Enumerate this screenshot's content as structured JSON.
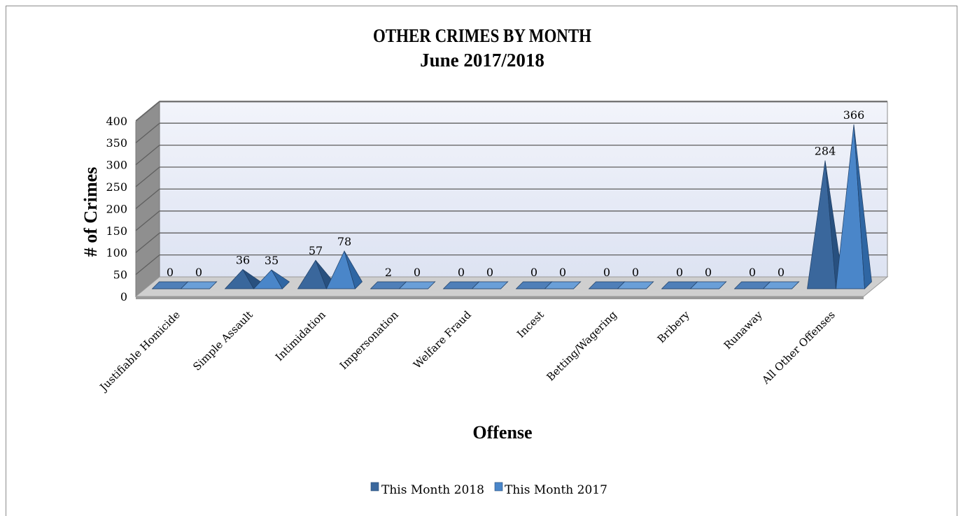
{
  "chart_data": {
    "type": "bar",
    "title": "OTHER CRIMES BY MONTH",
    "subtitle": "June 2017/2018",
    "xlabel": "Offense",
    "ylabel": "# of Crimes",
    "ylim": [
      0,
      400
    ],
    "yticks": [
      "0",
      "50",
      "100",
      "150",
      "200",
      "250",
      "300",
      "350",
      "400"
    ],
    "categories": [
      "Justifiable Homicide",
      "Simple Assault",
      "Intimidation",
      "Impersonation",
      "Welfare Fraud",
      "Incest",
      "Betting/Wagering",
      "Bribery",
      "Runaway",
      "All Other Offenses"
    ],
    "series": [
      {
        "name": "This Month 2018",
        "values": [
          0,
          36,
          57,
          2,
          0,
          0,
          0,
          0,
          0,
          284
        ],
        "labels": [
          "0",
          "36",
          "57",
          "2",
          "0",
          "0",
          "0",
          "0",
          "0",
          "284"
        ]
      },
      {
        "name": "This Month 2017",
        "values": [
          0,
          35,
          78,
          0,
          0,
          0,
          0,
          0,
          0,
          366
        ],
        "labels": [
          "0",
          "35",
          "78",
          "0",
          "0",
          "0",
          "0",
          "0",
          "0",
          "366"
        ]
      }
    ],
    "grid": true,
    "legend": "bottom",
    "mark_shape": "3d-pyramid",
    "colors": {
      "series_2018": "#3a679c",
      "series_2017": "#4a86c9",
      "wall": "#e8ecf7",
      "floor": "#a6a6a6",
      "side_wall": "#8f8f8f"
    }
  }
}
